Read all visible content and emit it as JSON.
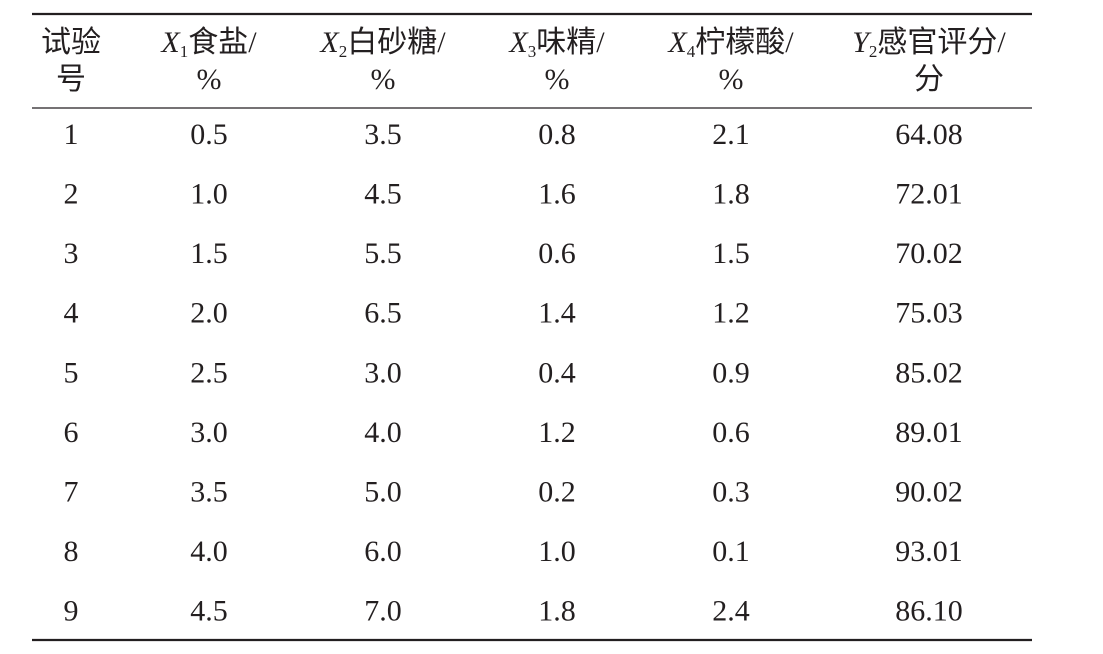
{
  "table": {
    "header": [
      {
        "lines": [
          "试验",
          "号"
        ]
      },
      {
        "symbol": "X",
        "sub": "1",
        "label": "食盐/",
        "unit": "%"
      },
      {
        "symbol": "X",
        "sub": "2",
        "label": "白砂糖/",
        "unit": "%"
      },
      {
        "symbol": "X",
        "sub": "3",
        "label": "味精/",
        "unit": "%"
      },
      {
        "symbol": "X",
        "sub": "4",
        "label": "柠檬酸/",
        "unit": "%"
      },
      {
        "symbol": "Y",
        "sub": "2",
        "label": "感官评分/",
        "unit": "分"
      }
    ],
    "rows": [
      [
        "1",
        "0.5",
        "3.5",
        "0.8",
        "2.1",
        "64.08"
      ],
      [
        "2",
        "1.0",
        "4.5",
        "1.6",
        "1.8",
        "72.01"
      ],
      [
        "3",
        "1.5",
        "5.5",
        "0.6",
        "1.5",
        "70.02"
      ],
      [
        "4",
        "2.0",
        "6.5",
        "1.4",
        "1.2",
        "75.03"
      ],
      [
        "5",
        "2.5",
        "3.0",
        "0.4",
        "0.9",
        "85.02"
      ],
      [
        "6",
        "3.0",
        "4.0",
        "1.2",
        "0.6",
        "89.01"
      ],
      [
        "7",
        "3.5",
        "5.0",
        "0.2",
        "0.3",
        "90.02"
      ],
      [
        "8",
        "4.0",
        "6.0",
        "1.0",
        "0.1",
        "93.01"
      ],
      [
        "9",
        "4.5",
        "7.0",
        "1.8",
        "2.4",
        "86.10"
      ]
    ]
  }
}
